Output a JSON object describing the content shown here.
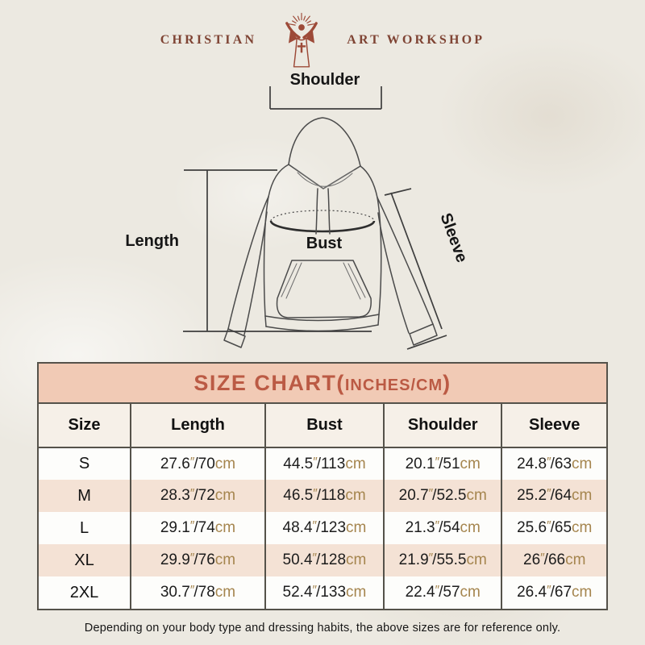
{
  "logo": {
    "left_text": "CHRISTIAN",
    "right_text": "ART WORKSHOP",
    "icon": "jesus-with-rays-and-cross-icon"
  },
  "diagram": {
    "labels": {
      "shoulder": "Shoulder",
      "length": "Length",
      "bust": "Bust",
      "sleeve": "Sleeve"
    }
  },
  "chart": {
    "title_main": "SIZE CHART",
    "paren_open": "(",
    "units": "INCHES/CM",
    "paren_close": ")"
  },
  "table": {
    "columns": [
      "Size",
      "Length",
      "Bust",
      "Shoulder",
      "Sleeve"
    ],
    "inch_mark": "″",
    "cm_label": "cm",
    "separator": "/",
    "striped_rows": [
      1,
      3
    ],
    "rows": [
      {
        "size": "S",
        "length": {
          "in": "27.6",
          "cm": "70"
        },
        "bust": {
          "in": "44.5",
          "cm": "113"
        },
        "shoulder": {
          "in": "20.1",
          "cm": "51"
        },
        "sleeve": {
          "in": "24.8",
          "cm": "63"
        }
      },
      {
        "size": "M",
        "length": {
          "in": "28.3",
          "cm": "72"
        },
        "bust": {
          "in": "46.5",
          "cm": "118"
        },
        "shoulder": {
          "in": "20.7",
          "cm": "52.5"
        },
        "sleeve": {
          "in": "25.2",
          "cm": "64"
        }
      },
      {
        "size": "L",
        "length": {
          "in": "29.1",
          "cm": "74"
        },
        "bust": {
          "in": "48.4",
          "cm": "123"
        },
        "shoulder": {
          "in": "21.3",
          "cm": "54"
        },
        "sleeve": {
          "in": "25.6",
          "cm": "65"
        }
      },
      {
        "size": "XL",
        "length": {
          "in": "29.9",
          "cm": "76"
        },
        "bust": {
          "in": "50.4",
          "cm": "128"
        },
        "shoulder": {
          "in": "21.9",
          "cm": "55.5"
        },
        "sleeve": {
          "in": "26",
          "cm": "66"
        }
      },
      {
        "size": "2XL",
        "length": {
          "in": "30.7",
          "cm": "78"
        },
        "bust": {
          "in": "52.4",
          "cm": "133"
        },
        "shoulder": {
          "in": "22.4",
          "cm": "57"
        },
        "sleeve": {
          "in": "26.4",
          "cm": "67"
        }
      }
    ]
  },
  "chart_data": {
    "type": "table",
    "title": "SIZE CHART(INCHES/CM)",
    "columns": [
      "Size",
      "Length",
      "Bust",
      "Shoulder",
      "Sleeve"
    ],
    "rows": [
      [
        "S",
        "27.6″/70cm",
        "44.5″/113cm",
        "20.1″/51cm",
        "24.8″/63cm"
      ],
      [
        "M",
        "28.3″/72cm",
        "46.5″/118cm",
        "20.7″/52.5cm",
        "25.2″/64cm"
      ],
      [
        "L",
        "29.1″/74cm",
        "48.4″/123cm",
        "21.3″/54cm",
        "25.6″/65cm"
      ],
      [
        "XL",
        "29.9″/76cm",
        "50.4″/128cm",
        "21.9″/55.5cm",
        "26″/66cm"
      ],
      [
        "2XL",
        "30.7″/78cm",
        "52.4″/133cm",
        "22.4″/57cm",
        "26.4″/67cm"
      ]
    ]
  },
  "footer": {
    "note": "Depending on your body type and dressing habits, the above sizes are for reference only."
  },
  "colors": {
    "page_bg": "#ece9e1",
    "logo_red": "#9d4a38",
    "title_bar_bg": "#f1cab5",
    "title_text": "#bb5a44",
    "header_row_bg": "#f6f0e8",
    "stripe_row_bg": "#f4e2d5",
    "unit_tan": "#a5854e",
    "table_border": "#55524a",
    "line_art": "#4b4b4b"
  }
}
